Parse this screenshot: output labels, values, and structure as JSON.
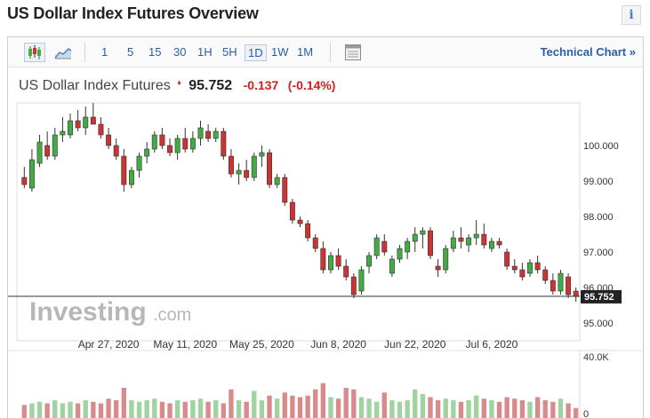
{
  "header": {
    "title": "US Dollar Index Futures Overview",
    "info_icon": "info-icon",
    "info_label": "i"
  },
  "toolbar": {
    "icons": [
      "candlestick-icon",
      "area-chart-icon",
      "calendar-icon"
    ],
    "timeframes": [
      "1",
      "5",
      "15",
      "30",
      "1H",
      "5H",
      "1D",
      "1W",
      "1M"
    ],
    "active_timeframe": "1D",
    "technical_chart": "Technical Chart",
    "technical_chart_arrow": "»"
  },
  "quote": {
    "name": "US Dollar Index Futures",
    "arrow": "♦",
    "price": "95.752",
    "change": "-0.137",
    "change_pct": "(-0.14%)",
    "down_color": "#d02020"
  },
  "watermark": {
    "brand": "Investing",
    "suffix": ".com"
  },
  "chart_data": {
    "type": "candlestick",
    "y_ticks": [
      "95.000",
      "96.000",
      "97.000",
      "98.000",
      "99.000",
      "100.000"
    ],
    "ylim": [
      94.8,
      101.2
    ],
    "price_line": 95.752,
    "price_label": "95.752",
    "x_tick_labels": [
      {
        "label": "Apr 27, 2020",
        "index": 11
      },
      {
        "label": "May 11, 2020",
        "index": 21
      },
      {
        "label": "May 25, 2020",
        "index": 31
      },
      {
        "label": "Jun 8, 2020",
        "index": 41
      },
      {
        "label": "Jun 22, 2020",
        "index": 51
      },
      {
        "label": "Jul 6, 2020",
        "index": 61
      }
    ],
    "volume_ticks": [
      "40.0K",
      "0"
    ],
    "volume_ylim": [
      0,
      40000
    ],
    "up_color": "#44aa44",
    "down_color": "#cc3333",
    "candles": [
      [
        99.1,
        99.4,
        98.8,
        98.9
      ],
      [
        98.8,
        99.9,
        98.7,
        99.6
      ],
      [
        99.5,
        100.3,
        99.4,
        100.1
      ],
      [
        100.0,
        100.4,
        99.6,
        99.7
      ],
      [
        99.7,
        100.5,
        99.6,
        100.3
      ],
      [
        100.3,
        100.8,
        100.1,
        100.4
      ],
      [
        100.3,
        100.9,
        100.2,
        100.7
      ],
      [
        100.7,
        101.0,
        100.4,
        100.5
      ],
      [
        100.5,
        101.1,
        100.3,
        100.8
      ],
      [
        100.8,
        101.2,
        100.6,
        100.6
      ],
      [
        100.6,
        100.8,
        100.2,
        100.3
      ],
      [
        100.3,
        100.5,
        99.9,
        100.0
      ],
      [
        100.0,
        100.2,
        99.6,
        99.7
      ],
      [
        99.7,
        99.9,
        98.7,
        98.9
      ],
      [
        98.9,
        99.4,
        98.8,
        99.3
      ],
      [
        99.3,
        99.8,
        99.1,
        99.7
      ],
      [
        99.7,
        100.1,
        99.5,
        99.9
      ],
      [
        99.9,
        100.4,
        99.8,
        100.3
      ],
      [
        100.3,
        100.5,
        99.9,
        100.0
      ],
      [
        100.0,
        100.2,
        99.7,
        99.8
      ],
      [
        99.8,
        100.3,
        99.6,
        100.2
      ],
      [
        100.2,
        100.5,
        99.8,
        99.9
      ],
      [
        99.9,
        100.4,
        99.8,
        100.2
      ],
      [
        100.2,
        100.7,
        100.0,
        100.5
      ],
      [
        100.4,
        100.6,
        100.1,
        100.2
      ],
      [
        100.2,
        100.5,
        100.1,
        100.4
      ],
      [
        100.4,
        100.5,
        99.6,
        99.7
      ],
      [
        99.7,
        99.9,
        99.1,
        99.2
      ],
      [
        99.2,
        99.5,
        98.9,
        99.3
      ],
      [
        99.3,
        99.6,
        99.0,
        99.1
      ],
      [
        99.1,
        99.8,
        99.0,
        99.7
      ],
      [
        99.7,
        100.0,
        99.4,
        99.8
      ],
      [
        99.8,
        99.9,
        98.8,
        98.9
      ],
      [
        98.9,
        99.2,
        98.8,
        99.1
      ],
      [
        99.1,
        99.2,
        98.3,
        98.4
      ],
      [
        98.4,
        98.5,
        97.8,
        97.9
      ],
      [
        97.9,
        98.0,
        97.7,
        97.8
      ],
      [
        97.8,
        97.9,
        97.3,
        97.4
      ],
      [
        97.4,
        97.5,
        97.0,
        97.1
      ],
      [
        97.1,
        97.3,
        96.4,
        96.5
      ],
      [
        96.5,
        97.0,
        96.4,
        96.9
      ],
      [
        96.9,
        97.1,
        96.5,
        96.6
      ],
      [
        96.6,
        96.8,
        96.2,
        96.3
      ],
      [
        96.3,
        96.4,
        95.7,
        95.8
      ],
      [
        95.9,
        96.6,
        95.8,
        96.5
      ],
      [
        96.6,
        97.0,
        96.4,
        96.9
      ],
      [
        96.9,
        97.5,
        96.8,
        97.4
      ],
      [
        97.3,
        97.5,
        96.9,
        97.0
      ],
      [
        96.4,
        96.9,
        96.3,
        96.8
      ],
      [
        96.8,
        97.2,
        96.7,
        97.1
      ],
      [
        97.0,
        97.4,
        96.8,
        97.3
      ],
      [
        97.3,
        97.7,
        97.0,
        97.5
      ],
      [
        97.5,
        97.7,
        97.1,
        97.6
      ],
      [
        97.6,
        97.7,
        96.8,
        96.9
      ],
      [
        96.6,
        96.8,
        96.3,
        96.5
      ],
      [
        96.5,
        97.2,
        96.4,
        97.1
      ],
      [
        97.1,
        97.6,
        97.0,
        97.4
      ],
      [
        97.4,
        97.7,
        97.1,
        97.3
      ],
      [
        97.2,
        97.5,
        97.0,
        97.4
      ],
      [
        97.4,
        97.9,
        97.2,
        97.5
      ],
      [
        97.5,
        97.8,
        97.1,
        97.2
      ],
      [
        97.1,
        97.4,
        97.0,
        97.3
      ],
      [
        97.3,
        97.4,
        97.1,
        97.2
      ],
      [
        97.0,
        97.1,
        96.5,
        96.6
      ],
      [
        96.6,
        96.8,
        96.4,
        96.5
      ],
      [
        96.5,
        96.7,
        96.2,
        96.3
      ],
      [
        96.4,
        96.8,
        96.3,
        96.7
      ],
      [
        96.7,
        96.9,
        96.4,
        96.5
      ],
      [
        96.5,
        96.6,
        96.1,
        96.2
      ],
      [
        96.2,
        96.4,
        95.8,
        95.9
      ],
      [
        95.9,
        96.5,
        95.8,
        96.4
      ],
      [
        96.3,
        96.4,
        95.7,
        95.8
      ],
      [
        95.9,
        96.0,
        95.6,
        95.75
      ]
    ],
    "volumes": [
      9000,
      10000,
      11000,
      10000,
      12000,
      10000,
      11000,
      10000,
      12000,
      11000,
      10000,
      13000,
      12000,
      20000,
      12000,
      11000,
      12000,
      13000,
      11000,
      10000,
      12000,
      11000,
      12000,
      13000,
      11000,
      12000,
      10000,
      19000,
      12000,
      11000,
      18000,
      12000,
      15000,
      13000,
      17000,
      15000,
      14000,
      15000,
      19000,
      23000,
      14000,
      13000,
      20000,
      19000,
      14000,
      13000,
      11000,
      17000,
      12000,
      11000,
      12000,
      19000,
      16000,
      14000,
      12000,
      13000,
      12000,
      11000,
      12000,
      15000,
      13000,
      12000,
      11000,
      14000,
      13000,
      12000,
      11000,
      14000,
      12000,
      11000,
      13000,
      10000,
      7000
    ]
  }
}
